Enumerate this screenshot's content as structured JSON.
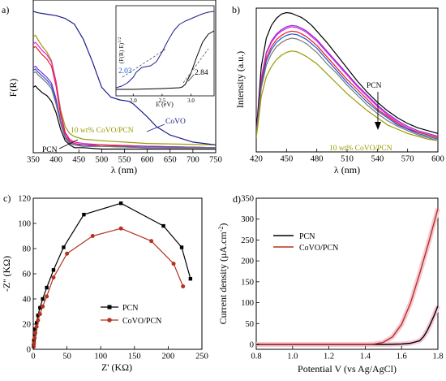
{
  "panels": [
    {
      "label": "a)",
      "ylabel": "F(R)",
      "xlabel": "λ (nm)",
      "xticks": [
        "350",
        "400",
        "450",
        "500",
        "550",
        "600",
        "650",
        "700",
        "750"
      ],
      "annotations": {
        "pcn": "PCN",
        "sample": "10 wt% CoVO/PCN",
        "covo": "CoVO"
      },
      "inset": {
        "ylabel": "(F(R) E)",
        "ylabel_sup": "1/2",
        "xlabel": "E (eV)",
        "xticks": [
          "2.0",
          "2.5",
          "3.0"
        ],
        "band_gaps": [
          "2.03",
          "2.84"
        ]
      }
    },
    {
      "label": "b)",
      "ylabel": "Intensity (a.u.)",
      "xlabel": "λ (nm)",
      "xticks": [
        "420",
        "450",
        "480",
        "510",
        "540",
        "570",
        "600"
      ],
      "annotations": {
        "pcn": "PCN",
        "sample": "10 wt% CoVO/PCN"
      }
    },
    {
      "label": "c)",
      "ylabel": "-Z'' (KΩ)",
      "xlabel": "Z' (KΩ)",
      "xticks": [
        "0",
        "50",
        "100",
        "150",
        "200",
        "250"
      ],
      "yticks": [
        "0",
        "20",
        "40",
        "60",
        "80",
        "100",
        "120"
      ],
      "legend": [
        "PCN",
        "CoVO/PCN"
      ]
    },
    {
      "label": "d)",
      "ylabel": "Current density (μA.cm",
      "ylabel_sup": "-2",
      "ylabel_end": ")",
      "xlabel": "Potential V (vs Ag/AgCl)",
      "xticks": [
        "0.8",
        "1.0",
        "1.2",
        "1.4",
        "1.6",
        "1.8"
      ],
      "yticks": [
        "0",
        "50",
        "100",
        "150",
        "200",
        "250",
        "300",
        "350"
      ],
      "legend": [
        "PCN",
        "CoVO/PCN"
      ]
    }
  ],
  "colors": {
    "black": "#000000",
    "yellow": "#9a9a00",
    "magenta": "#e020e0",
    "red": "#ee1d1d",
    "purple": "#8a2bd2",
    "blue": "#1a5ad6",
    "gray": "#777777",
    "navy": "#1c1c8c",
    "pcn": "#000000",
    "covo_pcn": "#b5331e",
    "pink": "#f7c9d7"
  },
  "chart_data": [
    {
      "type": "line",
      "title": "",
      "xlabel": "λ (nm)",
      "ylabel": "F(R)",
      "xlim": [
        350,
        750
      ],
      "ylim": [
        0,
        1
      ],
      "series": [
        {
          "color": "#000000",
          "x": [
            350,
            355,
            360,
            370,
            380,
            390,
            400,
            410,
            420,
            430,
            440,
            460,
            500,
            600,
            750
          ],
          "y": [
            0.46,
            0.47,
            0.45,
            0.42,
            0.4,
            0.36,
            0.28,
            0.16,
            0.08,
            0.05,
            0.03,
            0.03,
            0.02,
            0.02,
            0.02
          ]
        },
        {
          "color": "#9a9a00",
          "x": [
            350,
            355,
            360,
            370,
            380,
            390,
            400,
            410,
            420,
            430,
            440,
            460,
            500,
            600,
            750
          ],
          "y": [
            0.82,
            0.83,
            0.8,
            0.75,
            0.71,
            0.65,
            0.5,
            0.3,
            0.18,
            0.13,
            0.11,
            0.09,
            0.08,
            0.06,
            0.05
          ]
        },
        {
          "color": "#e020e0",
          "x": [
            350,
            355,
            360,
            370,
            380,
            390,
            400,
            410,
            420,
            430,
            440,
            460,
            500,
            600,
            750
          ],
          "y": [
            0.77,
            0.78,
            0.76,
            0.72,
            0.69,
            0.64,
            0.5,
            0.28,
            0.14,
            0.09,
            0.07,
            0.06,
            0.05,
            0.04,
            0.03
          ]
        },
        {
          "color": "#ee1d1d",
          "x": [
            350,
            355,
            360,
            370,
            380,
            390,
            400,
            410,
            420,
            430,
            440,
            460,
            500,
            600,
            750
          ],
          "y": [
            0.74,
            0.75,
            0.73,
            0.69,
            0.66,
            0.61,
            0.47,
            0.26,
            0.13,
            0.08,
            0.06,
            0.05,
            0.05,
            0.04,
            0.03
          ]
        },
        {
          "color": "#8a2bd2",
          "x": [
            350,
            355,
            360,
            370,
            380,
            390,
            400,
            410,
            420,
            430,
            440,
            460,
            500,
            600,
            750
          ],
          "y": [
            0.6,
            0.61,
            0.59,
            0.56,
            0.53,
            0.49,
            0.38,
            0.22,
            0.11,
            0.07,
            0.05,
            0.05,
            0.04,
            0.04,
            0.03
          ]
        },
        {
          "color": "#1a5ad6",
          "x": [
            350,
            355,
            360,
            370,
            380,
            390,
            400,
            410,
            420,
            430,
            440,
            460,
            500,
            600,
            750
          ],
          "y": [
            0.58,
            0.59,
            0.57,
            0.54,
            0.51,
            0.47,
            0.36,
            0.21,
            0.1,
            0.06,
            0.05,
            0.04,
            0.04,
            0.03,
            0.03
          ]
        },
        {
          "color": "#777777",
          "x": [
            350,
            355,
            360,
            370,
            380,
            390,
            400,
            410,
            420,
            430,
            440,
            460,
            500,
            600,
            750
          ],
          "y": [
            0.56,
            0.57,
            0.55,
            0.52,
            0.49,
            0.45,
            0.34,
            0.2,
            0.1,
            0.06,
            0.05,
            0.04,
            0.04,
            0.03,
            0.03
          ]
        },
        {
          "color": "#1c1c8c",
          "x": [
            350,
            360,
            380,
            400,
            420,
            440,
            460,
            480,
            500,
            520,
            540,
            560,
            570,
            580,
            600,
            620,
            650,
            700,
            750
          ],
          "y": [
            1.0,
            0.99,
            0.98,
            0.97,
            0.95,
            0.91,
            0.8,
            0.64,
            0.46,
            0.39,
            0.37,
            0.36,
            0.34,
            0.31,
            0.25,
            0.18,
            0.12,
            0.07,
            0.05
          ]
        }
      ]
    },
    {
      "type": "line",
      "title": "",
      "xlabel": "E (eV)",
      "ylabel": "(F(R) E)^1/2",
      "xlim": [
        1.7,
        3.4
      ],
      "ylim": [
        0,
        1
      ],
      "series": [
        {
          "color": "#1c1c8c",
          "x": [
            1.7,
            1.8,
            1.9,
            2.0,
            2.05,
            2.15,
            2.3,
            2.4,
            2.5,
            2.6,
            2.7,
            2.8,
            2.9,
            3.0,
            3.1,
            3.2,
            3.3,
            3.4
          ],
          "y": [
            0.04,
            0.06,
            0.1,
            0.17,
            0.23,
            0.29,
            0.31,
            0.36,
            0.48,
            0.62,
            0.74,
            0.82,
            0.86,
            0.89,
            0.92,
            0.95,
            0.97,
            0.98
          ]
        },
        {
          "color": "#000000",
          "x": [
            1.7,
            2.0,
            2.5,
            2.8,
            2.85,
            2.9,
            3.0,
            3.1,
            3.2,
            3.3,
            3.4
          ],
          "y": [
            0.02,
            0.02,
            0.03,
            0.04,
            0.05,
            0.08,
            0.22,
            0.42,
            0.6,
            0.7,
            0.74
          ]
        }
      ]
    },
    {
      "type": "line",
      "title": "",
      "xlabel": "λ (nm)",
      "ylabel": "Intensity (a.u.)",
      "xlim": [
        420,
        600
      ],
      "ylim": [
        0,
        1
      ],
      "series": [
        {
          "color": "#000000",
          "x": [
            420,
            422,
            425,
            430,
            435,
            440,
            445,
            450,
            455,
            460,
            465,
            470,
            475,
            480,
            490,
            500,
            510,
            520,
            530,
            540,
            550,
            560,
            570,
            580,
            590,
            600
          ],
          "y": [
            0.15,
            0.32,
            0.6,
            0.8,
            0.89,
            0.94,
            0.97,
            0.98,
            0.975,
            0.96,
            0.945,
            0.92,
            0.89,
            0.85,
            0.77,
            0.68,
            0.59,
            0.5,
            0.42,
            0.35,
            0.29,
            0.24,
            0.2,
            0.17,
            0.15,
            0.13
          ]
        },
        {
          "color": "#8a2bd2",
          "x": [
            420,
            422,
            425,
            430,
            435,
            440,
            445,
            450,
            455,
            460,
            465,
            470,
            475,
            480,
            490,
            500,
            510,
            520,
            530,
            540,
            550,
            560,
            570,
            580,
            590,
            600
          ],
          "y": [
            0.13,
            0.28,
            0.52,
            0.7,
            0.78,
            0.83,
            0.86,
            0.88,
            0.89,
            0.885,
            0.87,
            0.85,
            0.82,
            0.79,
            0.71,
            0.63,
            0.55,
            0.47,
            0.4,
            0.33,
            0.27,
            0.22,
            0.18,
            0.15,
            0.13,
            0.11
          ]
        },
        {
          "color": "#e020e0",
          "x": [
            420,
            422,
            425,
            430,
            435,
            440,
            445,
            450,
            455,
            460,
            465,
            470,
            475,
            480,
            490,
            500,
            510,
            520,
            530,
            540,
            550,
            560,
            570,
            580,
            590,
            600
          ],
          "y": [
            0.13,
            0.27,
            0.51,
            0.69,
            0.77,
            0.82,
            0.85,
            0.87,
            0.88,
            0.875,
            0.86,
            0.84,
            0.81,
            0.78,
            0.7,
            0.62,
            0.54,
            0.46,
            0.39,
            0.32,
            0.26,
            0.21,
            0.17,
            0.14,
            0.12,
            0.1
          ]
        },
        {
          "color": "#ee1d1d",
          "x": [
            420,
            422,
            425,
            430,
            435,
            440,
            445,
            450,
            455,
            460,
            465,
            470,
            475,
            480,
            490,
            500,
            510,
            520,
            530,
            540,
            550,
            560,
            570,
            580,
            590,
            600
          ],
          "y": [
            0.12,
            0.26,
            0.49,
            0.66,
            0.74,
            0.79,
            0.82,
            0.84,
            0.85,
            0.845,
            0.83,
            0.81,
            0.78,
            0.75,
            0.67,
            0.59,
            0.51,
            0.44,
            0.37,
            0.3,
            0.25,
            0.2,
            0.16,
            0.14,
            0.12,
            0.1
          ]
        },
        {
          "color": "#1a5ad6",
          "x": [
            420,
            422,
            425,
            430,
            435,
            440,
            445,
            450,
            455,
            460,
            465,
            470,
            475,
            480,
            490,
            500,
            510,
            520,
            530,
            540,
            550,
            560,
            570,
            580,
            590,
            600
          ],
          "y": [
            0.12,
            0.25,
            0.47,
            0.64,
            0.72,
            0.77,
            0.8,
            0.82,
            0.83,
            0.825,
            0.81,
            0.79,
            0.76,
            0.73,
            0.65,
            0.57,
            0.49,
            0.42,
            0.35,
            0.29,
            0.24,
            0.19,
            0.16,
            0.13,
            0.11,
            0.09
          ]
        },
        {
          "color": "#777777",
          "x": [
            420,
            422,
            425,
            430,
            435,
            440,
            445,
            450,
            455,
            460,
            465,
            470,
            475,
            480,
            490,
            500,
            510,
            520,
            530,
            540,
            550,
            560,
            570,
            580,
            590,
            600
          ],
          "y": [
            0.11,
            0.24,
            0.45,
            0.61,
            0.69,
            0.74,
            0.77,
            0.79,
            0.8,
            0.795,
            0.78,
            0.76,
            0.73,
            0.7,
            0.62,
            0.55,
            0.47,
            0.4,
            0.33,
            0.27,
            0.22,
            0.18,
            0.15,
            0.12,
            0.1,
            0.08
          ]
        },
        {
          "color": "#9a9a00",
          "x": [
            420,
            422,
            425,
            430,
            435,
            440,
            445,
            450,
            455,
            460,
            465,
            470,
            475,
            480,
            490,
            500,
            510,
            520,
            530,
            540,
            550,
            560,
            570,
            580,
            590,
            600
          ],
          "y": [
            0.1,
            0.21,
            0.39,
            0.53,
            0.6,
            0.65,
            0.68,
            0.7,
            0.71,
            0.705,
            0.69,
            0.67,
            0.645,
            0.62,
            0.55,
            0.48,
            0.41,
            0.35,
            0.29,
            0.24,
            0.19,
            0.16,
            0.13,
            0.11,
            0.09,
            0.08
          ]
        }
      ]
    },
    {
      "type": "line",
      "title": "",
      "xlabel": "Z' (KΩ)",
      "ylabel": "-Z'' (KΩ)",
      "xlim": [
        0,
        250
      ],
      "ylim": [
        0,
        120
      ],
      "series": [
        {
          "name": "PCN",
          "color": "#000000",
          "x": [
            0.5,
            1,
            2,
            3,
            5,
            7,
            10,
            14,
            20,
            30,
            45,
            75,
            130,
            193,
            220,
            233
          ],
          "y": [
            3,
            7,
            12,
            16,
            21,
            27,
            33,
            40,
            49,
            63,
            81,
            107,
            116,
            98,
            81,
            56
          ]
        },
        {
          "name": "CoVO/PCN",
          "color": "#b5331e",
          "x": [
            0.5,
            1,
            2,
            3,
            5,
            7,
            10,
            14,
            20,
            30,
            50,
            88,
            130,
            175,
            208,
            222
          ],
          "y": [
            2,
            5,
            9,
            13,
            18,
            23,
            28,
            34,
            42,
            57,
            76,
            90,
            96,
            86,
            68,
            50
          ]
        }
      ]
    },
    {
      "type": "line",
      "title": "",
      "xlabel": "Potential V (vs Ag/AgCl)",
      "ylabel": "Current density (μA.cm-2)",
      "xlim": [
        0.8,
        1.8
      ],
      "ylim": [
        0,
        350
      ],
      "series": [
        {
          "name": "PCN",
          "color": "#000000",
          "x": [
            0.8,
            1.0,
            1.2,
            1.4,
            1.5,
            1.6,
            1.65,
            1.7,
            1.72,
            1.74,
            1.76,
            1.78,
            1.8
          ],
          "y": [
            0,
            0,
            0,
            0,
            0,
            1,
            3,
            9,
            18,
            32,
            50,
            70,
            92
          ]
        },
        {
          "name": "CoVO/PCN",
          "color": "#b5331e",
          "x": [
            0.8,
            1.0,
            1.2,
            1.4,
            1.45,
            1.5,
            1.55,
            1.6,
            1.65,
            1.7,
            1.75,
            1.8
          ],
          "y": [
            0,
            0,
            0,
            0,
            1,
            5,
            18,
            48,
            100,
            170,
            245,
            325
          ]
        }
      ]
    }
  ]
}
